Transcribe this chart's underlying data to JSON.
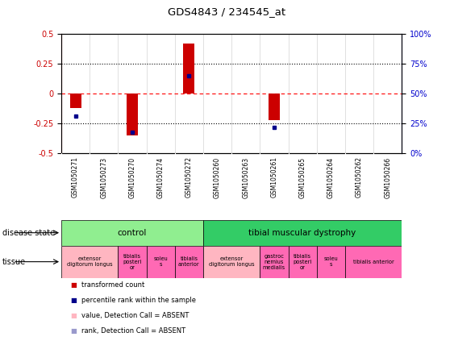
{
  "title": "GDS4843 / 234545_at",
  "samples": [
    "GSM1050271",
    "GSM1050273",
    "GSM1050270",
    "GSM1050274",
    "GSM1050272",
    "GSM1050260",
    "GSM1050263",
    "GSM1050261",
    "GSM1050265",
    "GSM1050264",
    "GSM1050262",
    "GSM1050266"
  ],
  "red_bars": [
    -0.12,
    0.0,
    -0.35,
    0.0,
    0.42,
    0.0,
    0.0,
    -0.22,
    0.0,
    0.0,
    0.0,
    0.0
  ],
  "blue_dots": [
    -0.19,
    null,
    -0.32,
    null,
    0.15,
    null,
    null,
    -0.28,
    null,
    null,
    null,
    null
  ],
  "ylim_left": [
    -0.5,
    0.5
  ],
  "ylim_right": [
    0,
    100
  ],
  "yticks_left": [
    -0.5,
    -0.25,
    0,
    0.25,
    0.5
  ],
  "yticks_right": [
    0,
    25,
    50,
    75,
    100
  ],
  "ytick_labels_left": [
    "-0.5",
    "-0.25",
    "0",
    "0.25",
    "0.5"
  ],
  "ytick_labels_right": [
    "0%",
    "25%",
    "50%",
    "75%",
    "100%"
  ],
  "hlines": [
    0.25,
    0,
    -0.25
  ],
  "hline_styles": [
    "dotted",
    "dashed_red",
    "dotted"
  ],
  "disease_state_groups": [
    {
      "label": "control",
      "start": 0,
      "end": 4,
      "color": "#90EE90"
    },
    {
      "label": "tibial muscular dystrophy",
      "start": 5,
      "end": 11,
      "color": "#33CC66"
    }
  ],
  "tissue_groups": [
    {
      "label": "extensor\ndigitorum longus",
      "start": 0,
      "end": 1,
      "color": "#FFB6C1"
    },
    {
      "label": "tibialis\nposteri\nor",
      "start": 2,
      "end": 2,
      "color": "#FF69B4"
    },
    {
      "label": "soleu\ns",
      "start": 3,
      "end": 3,
      "color": "#FF69B4"
    },
    {
      "label": "tibialis\nanterior",
      "start": 4,
      "end": 4,
      "color": "#FF69B4"
    },
    {
      "label": "extensor\ndigitorum longus",
      "start": 5,
      "end": 6,
      "color": "#FFB6C1"
    },
    {
      "label": "gastroc\nnemius\nmedialis",
      "start": 7,
      "end": 7,
      "color": "#FF69B4"
    },
    {
      "label": "tibialis\nposteri\nor",
      "start": 8,
      "end": 8,
      "color": "#FF69B4"
    },
    {
      "label": "soleu\ns",
      "start": 9,
      "end": 9,
      "color": "#FF69B4"
    },
    {
      "label": "tibialis anterior",
      "start": 10,
      "end": 11,
      "color": "#FF69B4"
    }
  ],
  "legend_items": [
    {
      "color": "#CC0000",
      "label": "transformed count"
    },
    {
      "color": "#00008B",
      "label": "percentile rank within the sample"
    },
    {
      "color": "#FFB6C1",
      "label": "value, Detection Call = ABSENT"
    },
    {
      "color": "#9999CC",
      "label": "rank, Detection Call = ABSENT"
    }
  ],
  "bar_color": "#CC0000",
  "dot_color": "#00008B",
  "axis_color_left": "#CC0000",
  "axis_color_right": "#0000CC",
  "plot_bg_color": "#FFFFFF"
}
